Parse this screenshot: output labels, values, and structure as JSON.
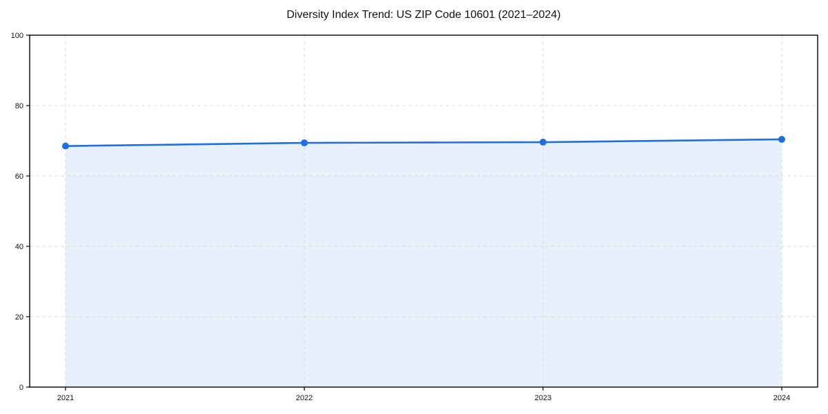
{
  "page": {
    "background": "#ffffff"
  },
  "chart_data": {
    "type": "line",
    "title": "Diversity Index Trend: US ZIP Code 10601 (2021–2024)",
    "categories": [
      "2021",
      "2022",
      "2023",
      "2024"
    ],
    "series": [
      {
        "name": "Diversity Index",
        "values": [
          68.5,
          69.4,
          69.6,
          70.4
        ]
      }
    ],
    "xlabel": "",
    "ylabel": "",
    "ylim": [
      0,
      100
    ],
    "yticks": [
      0,
      20,
      40,
      60,
      80,
      100
    ],
    "grid": "dashed horizontal lines at yticks and dashed vertical lines at each year",
    "legend_position": "none",
    "marker": "circle",
    "area_fill": true,
    "colors": {
      "line": "#1f6fe0",
      "fill": "#e8f0fc",
      "grid": "#d9d9d9",
      "axis": "#000000",
      "text": "#111111"
    }
  }
}
